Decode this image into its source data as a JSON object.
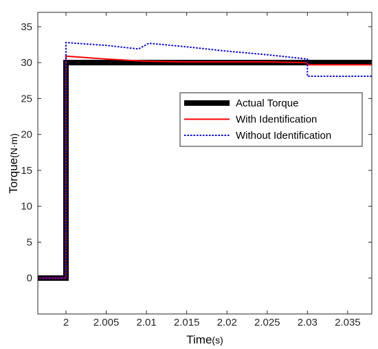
{
  "chart_data": {
    "type": "line",
    "title": "",
    "xlabel": {
      "main": "Time",
      "unit": "(s)"
    },
    "ylabel": {
      "main": "Torque",
      "unit": "(N·m)"
    },
    "xlim": [
      1.9965,
      2.038
    ],
    "ylim": [
      -5,
      37
    ],
    "grid": false,
    "legend_position": "right",
    "x_ticks": [
      2,
      2.005,
      2.01,
      2.015,
      2.02,
      2.025,
      2.03,
      2.035
    ],
    "x_tick_labels": [
      "2",
      "2.005",
      "2.01",
      "2.015",
      "2.02",
      "2.025",
      "2.03",
      "2.035"
    ],
    "y_ticks": [
      0,
      5,
      10,
      15,
      20,
      25,
      30,
      35
    ],
    "y_tick_labels": [
      "0",
      "5",
      "10",
      "15",
      "20",
      "25",
      "30",
      "35"
    ],
    "series": [
      {
        "name": "Actual Torque",
        "color": "#000000",
        "style": "solid",
        "x": [
          1.9965,
          2.0,
          2.0,
          2.038
        ],
        "y": [
          0,
          0,
          30,
          30
        ]
      },
      {
        "name": "With Identification",
        "color": "#ff0000",
        "style": "solid",
        "x": [
          1.9965,
          2.0,
          2.0,
          2.005,
          2.01,
          2.015,
          2.02,
          2.025,
          2.03,
          2.03,
          2.038
        ],
        "y": [
          0,
          0,
          30.9,
          30.5,
          30.2,
          30.1,
          30.1,
          30.1,
          30.0,
          29.7,
          29.7
        ]
      },
      {
        "name": "Without Identification",
        "color": "#0000ff",
        "style": "dotted",
        "x": [
          1.9965,
          2.0,
          2.0,
          2.005,
          2.009,
          2.0103,
          2.015,
          2.02,
          2.025,
          2.03,
          2.03,
          2.038
        ],
        "y": [
          0,
          0,
          32.8,
          32.4,
          31.9,
          32.7,
          32.2,
          31.6,
          31.1,
          30.5,
          28.1,
          28.1
        ]
      }
    ]
  }
}
